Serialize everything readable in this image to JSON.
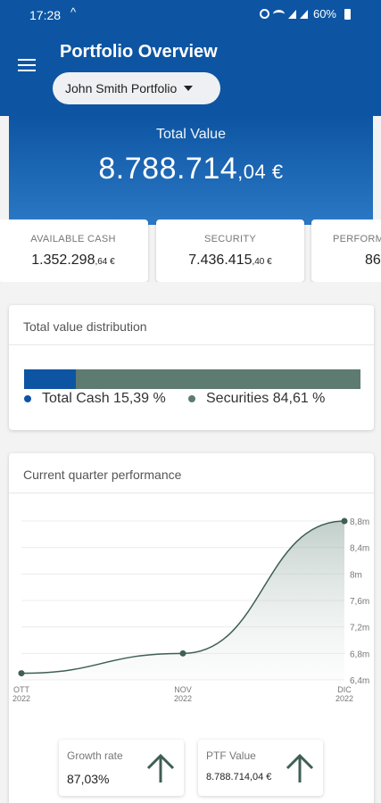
{
  "status_bar": {
    "time": "17:28",
    "battery": "60%"
  },
  "header": {
    "title": "Portfolio Overview",
    "portfolio_name": "John Smith Portfolio"
  },
  "total": {
    "label": "Total Value",
    "integer": "8.788.714",
    "decimal": ",04 €"
  },
  "kpis": [
    {
      "label": "AVAILABLE CASH",
      "integer": "1.352.298",
      "decimal": ",64 €"
    },
    {
      "label": "SECURITY",
      "integer": "7.436.415",
      "decimal": ",40 €"
    },
    {
      "label": "PERFORM",
      "integer": "86",
      "decimal": ""
    }
  ],
  "distribution": {
    "title": "Total value distribution",
    "cash_label": "Total Cash 15,39 %",
    "securities_label": "Securities 84,61 %",
    "cash_pct": 15.39,
    "securities_pct": 84.61,
    "colors": {
      "cash": "#0d55a3",
      "securities": "#5d7b70"
    }
  },
  "performance": {
    "title": "Current quarter performance"
  },
  "chart_data": {
    "type": "area",
    "title": "Current quarter performance",
    "x": [
      "OTT\n2022",
      "NOV\n2022",
      "DIC\n2022"
    ],
    "x_labels": [
      [
        "OTT",
        "2022"
      ],
      [
        "NOV",
        "2022"
      ],
      [
        "DIC",
        "2022"
      ]
    ],
    "y_values": [
      6.5,
      6.8,
      8.8
    ],
    "y_unit": "m",
    "y_ticks": [
      "8,8m",
      "8,4m",
      "8m",
      "7,6m",
      "7,2m",
      "6,8m",
      "6,4m"
    ],
    "y_tick_values": [
      8.8,
      8.4,
      8.0,
      7.6,
      7.2,
      6.8,
      6.4
    ],
    "ylim": [
      6.4,
      8.8
    ],
    "grid": true,
    "color": "#3f5f53"
  },
  "summary": [
    {
      "label": "Growth rate",
      "value": "87,03%"
    },
    {
      "label": "PTF Value",
      "value": "8.788.714,04 €"
    }
  ]
}
